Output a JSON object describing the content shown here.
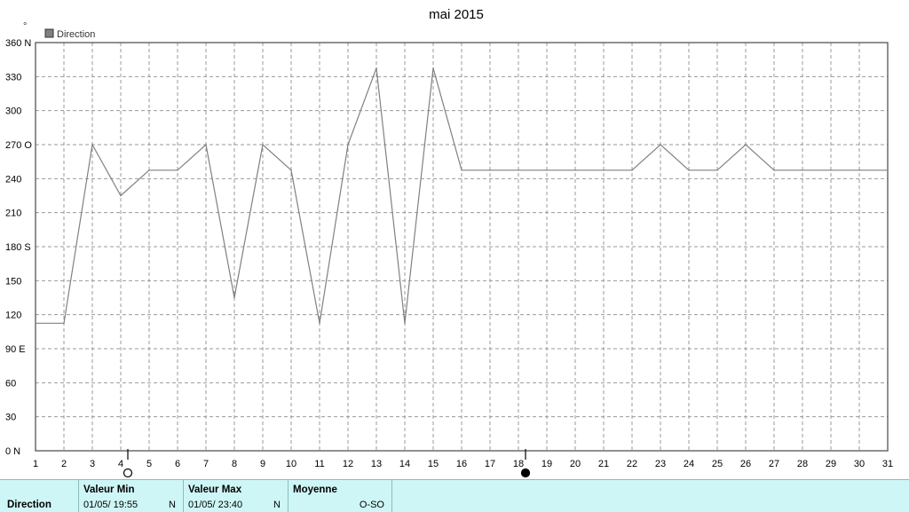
{
  "chart_data": {
    "type": "line",
    "title": "mai 2015",
    "y_unit": "°",
    "legend": {
      "label": "Direction",
      "position": "top-left",
      "color": "#808080"
    },
    "x": [
      1,
      2,
      3,
      4,
      5,
      6,
      7,
      8,
      9,
      10,
      11,
      12,
      13,
      14,
      15,
      16,
      17,
      18,
      19,
      20,
      21,
      22,
      23,
      24,
      25,
      26,
      27,
      28,
      29,
      30,
      31
    ],
    "xlim": [
      1,
      31
    ],
    "ylim": [
      0,
      360
    ],
    "yticks": [
      {
        "value": 0,
        "label": "0 N"
      },
      {
        "value": 30,
        "label": "30"
      },
      {
        "value": 60,
        "label": "60"
      },
      {
        "value": 90,
        "label": "90 E"
      },
      {
        "value": 120,
        "label": "120"
      },
      {
        "value": 150,
        "label": "150"
      },
      {
        "value": 180,
        "label": "180 S"
      },
      {
        "value": 210,
        "label": "210"
      },
      {
        "value": 240,
        "label": "240"
      },
      {
        "value": 270,
        "label": "270 O"
      },
      {
        "value": 300,
        "label": "300"
      },
      {
        "value": 330,
        "label": "330"
      },
      {
        "value": 360,
        "label": "360 N"
      }
    ],
    "grid": true,
    "series": [
      {
        "name": "Direction",
        "color": "#808080",
        "points": [
          [
            1,
            112.5
          ],
          [
            2,
            112.5
          ],
          [
            3,
            270
          ],
          [
            4,
            225
          ],
          [
            5,
            247.5
          ],
          [
            6,
            247.5
          ],
          [
            7,
            270
          ],
          [
            8,
            135
          ],
          [
            9,
            270
          ],
          [
            10,
            247.5
          ],
          [
            11,
            112.5
          ],
          [
            12,
            270
          ],
          [
            13,
            337.5
          ],
          [
            14,
            112.5
          ],
          [
            15,
            337.5
          ],
          [
            16,
            247.5
          ],
          [
            17,
            247.5
          ],
          [
            18,
            247.5
          ],
          [
            19,
            247.5
          ],
          [
            20,
            247.5
          ],
          [
            21,
            247.5
          ],
          [
            22,
            247.5
          ],
          [
            23,
            270
          ],
          [
            24,
            247.5
          ],
          [
            25,
            247.5
          ],
          [
            26,
            270
          ],
          [
            27,
            247.5
          ],
          [
            28,
            247.5
          ],
          [
            29,
            247.5
          ],
          [
            30,
            247.5
          ],
          [
            31,
            247.5
          ]
        ]
      }
    ],
    "moon_markers": [
      {
        "x": 4.25,
        "phase": "full-moon"
      },
      {
        "x": 18.25,
        "phase": "new-moon"
      }
    ]
  },
  "footer": {
    "series_label": "Direction",
    "min": {
      "header": "Valeur Min",
      "date": "01/05/  19:55",
      "value": "N"
    },
    "max": {
      "header": "Valeur Max",
      "date": "01/05/  23:40",
      "value": "N"
    },
    "mean": {
      "header": "Moyenne",
      "value": "O-SO"
    },
    "background": "#cff6f6"
  }
}
